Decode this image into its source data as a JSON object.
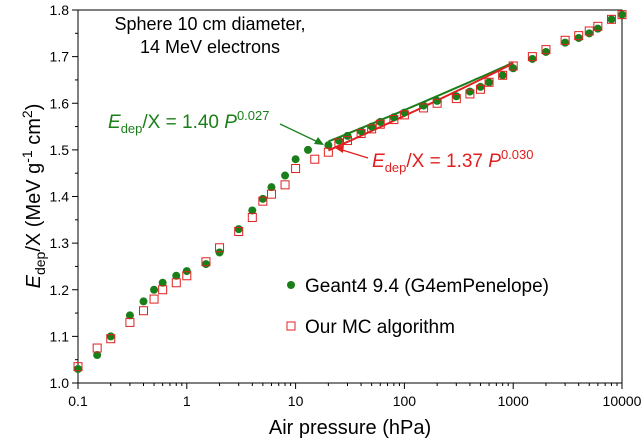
{
  "chart_data": {
    "type": "scatter",
    "xscale": "log",
    "yscale": "linear",
    "xlim": [
      0.1,
      10000
    ],
    "ylim": [
      1.0,
      1.8
    ],
    "xticks": [
      0.1,
      1,
      10,
      100,
      1000,
      10000
    ],
    "xtick_labels": [
      "0.1",
      "1",
      "10",
      "100",
      "1000",
      "10000"
    ],
    "yticks": [
      1.0,
      1.1,
      1.2,
      1.3,
      1.4,
      1.5,
      1.6,
      1.7,
      1.8
    ],
    "ytick_labels": [
      "1.0",
      "1.1",
      "1.2",
      "1.3",
      "1.4",
      "1.5",
      "1.6",
      "1.7",
      "1.8"
    ],
    "grid": false,
    "legend_position": "bottom-right",
    "title_line1": "Sphere 10 cm diameter,",
    "title_line2": "14 MeV electrons",
    "xlabel": "Air pressure (hPa)",
    "ylabel": {
      "p1": "E",
      "p1_sub": "dep",
      "p2": "/X (MeV g",
      "p2_sup": "-1",
      "p3": " cm",
      "p3_sup": "2",
      "p4": ")"
    },
    "series": [
      {
        "name": "Geant4 9.4 (G4emPenelope)",
        "marker": "filled-circle",
        "color": "#1a7f1a",
        "x": [
          0.1,
          0.15,
          0.2,
          0.3,
          0.4,
          0.5,
          0.6,
          0.8,
          1,
          1.5,
          2,
          3,
          4,
          5,
          6,
          8,
          10,
          13,
          20,
          25,
          30,
          40,
          50,
          60,
          80,
          100,
          150,
          200,
          300,
          400,
          500,
          600,
          800,
          1000,
          1500,
          2000,
          3000,
          4000,
          5000,
          6000,
          8000,
          10000
        ],
        "y": [
          1.03,
          1.06,
          1.1,
          1.145,
          1.175,
          1.2,
          1.215,
          1.23,
          1.24,
          1.255,
          1.28,
          1.33,
          1.37,
          1.395,
          1.42,
          1.445,
          1.48,
          1.5,
          1.51,
          1.52,
          1.53,
          1.54,
          1.55,
          1.56,
          1.57,
          1.58,
          1.595,
          1.605,
          1.615,
          1.625,
          1.635,
          1.645,
          1.66,
          1.675,
          1.695,
          1.71,
          1.73,
          1.74,
          1.75,
          1.76,
          1.78,
          1.79
        ]
      },
      {
        "name": "Our MC algorithm",
        "marker": "open-square",
        "color": "#e02020",
        "x": [
          0.1,
          0.15,
          0.2,
          0.3,
          0.4,
          0.5,
          0.6,
          0.8,
          1,
          1.5,
          2,
          3,
          4,
          5,
          6,
          8,
          10,
          15,
          20,
          25,
          30,
          40,
          50,
          60,
          80,
          100,
          150,
          200,
          300,
          400,
          500,
          600,
          800,
          1000,
          1500,
          2000,
          3000,
          4000,
          5000,
          6000,
          8000,
          10000
        ],
        "y": [
          1.035,
          1.075,
          1.095,
          1.13,
          1.155,
          1.18,
          1.2,
          1.215,
          1.23,
          1.26,
          1.29,
          1.325,
          1.355,
          1.39,
          1.405,
          1.425,
          1.46,
          1.48,
          1.495,
          1.515,
          1.52,
          1.535,
          1.545,
          1.555,
          1.565,
          1.575,
          1.59,
          1.6,
          1.61,
          1.62,
          1.63,
          1.645,
          1.66,
          1.68,
          1.7,
          1.715,
          1.735,
          1.745,
          1.755,
          1.765,
          1.78,
          1.79
        ]
      }
    ],
    "fits": [
      {
        "a": 1.4,
        "b": 0.027,
        "x_range": [
          20,
          1000
        ],
        "color": "#1a7f1a",
        "label": {
          "E": "E",
          "sub": "dep",
          "mid": "/X = 1.40 ",
          "P": "P",
          "sup": "0.027"
        }
      },
      {
        "a": 1.37,
        "b": 0.03,
        "x_range": [
          20,
          1000
        ],
        "color": "#e02020",
        "label": {
          "E": "E",
          "sub": "dep",
          "mid": "/X = 1.37 ",
          "P": "P",
          "sup": "0.030"
        }
      }
    ],
    "legend": [
      {
        "label": "Geant4 9.4 (G4emPenelope)"
      },
      {
        "label": "Our MC algorithm"
      }
    ]
  }
}
